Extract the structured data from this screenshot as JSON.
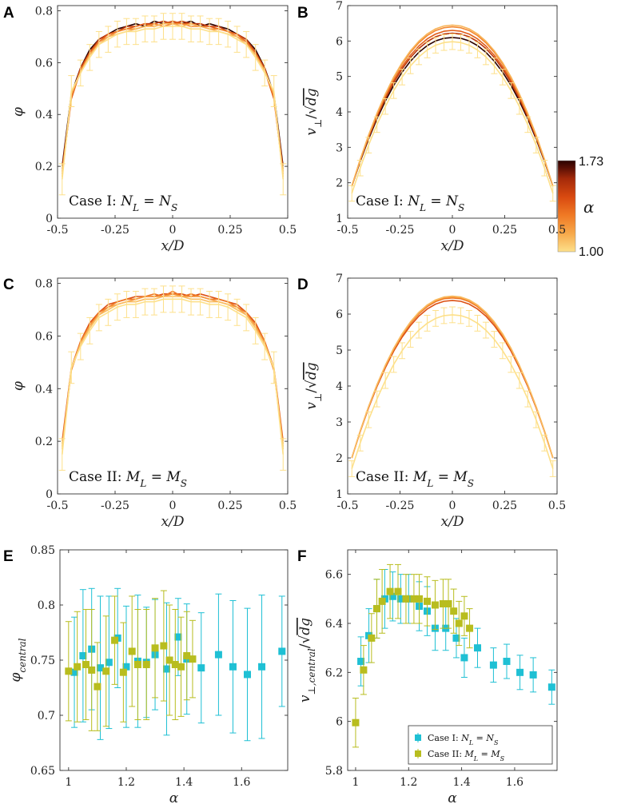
{
  "figure": {
    "panel_labels": [
      "A",
      "B",
      "C",
      "D",
      "E",
      "F"
    ],
    "colorbar": {
      "label": "α",
      "max_label": "1.73",
      "min_label": "1.00",
      "min": 1.0,
      "max": 1.73,
      "colors": [
        "#fde08a",
        "#f7a94b",
        "#f07a25",
        "#d94a10",
        "#a52a0a",
        "#5a0f05",
        "#2b0200"
      ]
    }
  },
  "chart_data": [
    {
      "id": "A",
      "type": "line",
      "title": "",
      "xlabel": "x/D",
      "ylabel": "φ",
      "case_text": "Case I: N_L = N_S",
      "xlim": [
        -0.5,
        0.5
      ],
      "ylim": [
        0,
        0.82
      ],
      "xticks": [
        -0.5,
        -0.25,
        0,
        0.25,
        0.5
      ],
      "xticklabels": [
        "-0.5",
        "-0.25",
        "0",
        "0.25",
        "0.5"
      ],
      "yticks": [
        0,
        0.2,
        0.4,
        0.6,
        0.8
      ],
      "yticklabels": [
        "0",
        "0.2",
        "0.4",
        "0.6",
        "0.8"
      ],
      "x": [
        -0.48,
        -0.44,
        -0.4,
        -0.36,
        -0.32,
        -0.28,
        -0.24,
        -0.2,
        -0.16,
        -0.12,
        -0.08,
        -0.04,
        0,
        0.04,
        0.08,
        0.12,
        0.16,
        0.2,
        0.24,
        0.28,
        0.32,
        0.36,
        0.4,
        0.44,
        0.48
      ],
      "series": [
        {
          "alpha": 1.0,
          "values": [
            0.15,
            0.49,
            0.56,
            0.62,
            0.67,
            0.69,
            0.71,
            0.72,
            0.72,
            0.73,
            0.73,
            0.74,
            0.74,
            0.74,
            0.73,
            0.73,
            0.72,
            0.72,
            0.71,
            0.69,
            0.67,
            0.62,
            0.56,
            0.49,
            0.15
          ],
          "errors": [
            0.06,
            0.06,
            0.05,
            0.05,
            0.05,
            0.05,
            0.05,
            0.05,
            0.05,
            0.05,
            0.05,
            0.05,
            0.05,
            0.05,
            0.05,
            0.05,
            0.05,
            0.05,
            0.05,
            0.05,
            0.05,
            0.05,
            0.05,
            0.06,
            0.06
          ]
        },
        {
          "alpha": 1.12,
          "values": [
            0.16,
            0.48,
            0.56,
            0.63,
            0.67,
            0.7,
            0.71,
            0.72,
            0.73,
            0.74,
            0.74,
            0.75,
            0.75,
            0.74,
            0.75,
            0.74,
            0.73,
            0.72,
            0.71,
            0.7,
            0.67,
            0.63,
            0.57,
            0.48,
            0.16
          ]
        },
        {
          "alpha": 1.25,
          "values": [
            0.17,
            0.47,
            0.57,
            0.63,
            0.68,
            0.7,
            0.72,
            0.73,
            0.73,
            0.74,
            0.75,
            0.74,
            0.75,
            0.75,
            0.74,
            0.74,
            0.73,
            0.73,
            0.72,
            0.7,
            0.68,
            0.63,
            0.57,
            0.47,
            0.17
          ]
        },
        {
          "alpha": 1.38,
          "values": [
            0.18,
            0.46,
            0.57,
            0.64,
            0.68,
            0.71,
            0.72,
            0.73,
            0.74,
            0.75,
            0.74,
            0.75,
            0.76,
            0.75,
            0.75,
            0.74,
            0.74,
            0.73,
            0.72,
            0.71,
            0.68,
            0.64,
            0.57,
            0.46,
            0.18
          ]
        },
        {
          "alpha": 1.52,
          "values": [
            0.19,
            0.47,
            0.58,
            0.64,
            0.69,
            0.71,
            0.72,
            0.74,
            0.74,
            0.75,
            0.75,
            0.76,
            0.75,
            0.76,
            0.75,
            0.75,
            0.74,
            0.74,
            0.72,
            0.71,
            0.69,
            0.64,
            0.58,
            0.47,
            0.19
          ]
        },
        {
          "alpha": 1.73,
          "values": [
            0.2,
            0.48,
            0.58,
            0.65,
            0.69,
            0.71,
            0.73,
            0.74,
            0.75,
            0.74,
            0.76,
            0.75,
            0.76,
            0.75,
            0.76,
            0.74,
            0.75,
            0.74,
            0.73,
            0.71,
            0.69,
            0.65,
            0.58,
            0.48,
            0.2
          ]
        }
      ]
    },
    {
      "id": "B",
      "type": "line",
      "title": "",
      "xlabel": "x/D",
      "ylabel": "v⊥/√dg",
      "case_text": "Case I: N_L = N_S",
      "xlim": [
        -0.5,
        0.5
      ],
      "ylim": [
        1,
        7
      ],
      "xticks": [
        -0.5,
        -0.25,
        0,
        0.25,
        0.5
      ],
      "xticklabels": [
        "-0.5",
        "-0.25",
        "0",
        "0.25",
        "0.5"
      ],
      "yticks": [
        1,
        2,
        3,
        4,
        5,
        6,
        7
      ],
      "yticklabels": [
        "1",
        "2",
        "3",
        "4",
        "5",
        "6",
        "7"
      ],
      "x": [
        -0.48,
        -0.44,
        -0.4,
        -0.36,
        -0.32,
        -0.28,
        -0.24,
        -0.2,
        -0.16,
        -0.12,
        -0.08,
        -0.04,
        0,
        0.04,
        0.08,
        0.12,
        0.16,
        0.2,
        0.24,
        0.28,
        0.32,
        0.36,
        0.4,
        0.44,
        0.48
      ],
      "series": [
        {
          "alpha": 1.0,
          "peak": 5.98,
          "edge": 1.7,
          "err": 0.22
        },
        {
          "alpha": 1.12,
          "peak": 6.45,
          "edge": 1.9
        },
        {
          "alpha": 1.25,
          "peak": 6.4,
          "edge": 1.9
        },
        {
          "alpha": 1.38,
          "peak": 6.3,
          "edge": 1.9
        },
        {
          "alpha": 1.52,
          "peak": 6.22,
          "edge": 1.9
        },
        {
          "alpha": 1.73,
          "peak": 6.1,
          "edge": 1.9
        }
      ]
    },
    {
      "id": "C",
      "type": "line",
      "title": "",
      "xlabel": "x/D",
      "ylabel": "φ",
      "case_text": "Case II: M_L = M_S",
      "xlim": [
        -0.5,
        0.5
      ],
      "ylim": [
        0,
        0.82
      ],
      "xticks": [
        -0.5,
        -0.25,
        0,
        0.25,
        0.5
      ],
      "xticklabels": [
        "-0.5",
        "-0.25",
        "0",
        "0.25",
        "0.5"
      ],
      "yticks": [
        0,
        0.2,
        0.4,
        0.6,
        0.8
      ],
      "yticklabels": [
        "0",
        "0.2",
        "0.4",
        "0.6",
        "0.8"
      ],
      "x": [
        -0.48,
        -0.44,
        -0.4,
        -0.36,
        -0.32,
        -0.28,
        -0.24,
        -0.2,
        -0.16,
        -0.12,
        -0.08,
        -0.04,
        0,
        0.04,
        0.08,
        0.12,
        0.16,
        0.2,
        0.24,
        0.28,
        0.32,
        0.36,
        0.4,
        0.44,
        0.48
      ],
      "series": [
        {
          "alpha": 1.0,
          "values": [
            0.15,
            0.48,
            0.56,
            0.62,
            0.67,
            0.69,
            0.71,
            0.72,
            0.72,
            0.73,
            0.73,
            0.74,
            0.74,
            0.74,
            0.73,
            0.73,
            0.72,
            0.72,
            0.71,
            0.69,
            0.67,
            0.62,
            0.56,
            0.48,
            0.15
          ],
          "errors": [
            0.06,
            0.06,
            0.05,
            0.05,
            0.05,
            0.05,
            0.05,
            0.05,
            0.05,
            0.05,
            0.05,
            0.05,
            0.05,
            0.05,
            0.05,
            0.05,
            0.05,
            0.05,
            0.05,
            0.05,
            0.05,
            0.05,
            0.05,
            0.06,
            0.06
          ]
        },
        {
          "alpha": 1.1,
          "values": [
            0.17,
            0.48,
            0.57,
            0.63,
            0.68,
            0.7,
            0.72,
            0.73,
            0.73,
            0.74,
            0.74,
            0.75,
            0.75,
            0.75,
            0.74,
            0.74,
            0.73,
            0.73,
            0.72,
            0.7,
            0.68,
            0.63,
            0.57,
            0.48,
            0.17
          ]
        },
        {
          "alpha": 1.2,
          "values": [
            0.18,
            0.47,
            0.57,
            0.64,
            0.68,
            0.71,
            0.72,
            0.73,
            0.74,
            0.75,
            0.75,
            0.75,
            0.76,
            0.75,
            0.75,
            0.75,
            0.74,
            0.73,
            0.72,
            0.71,
            0.68,
            0.64,
            0.57,
            0.47,
            0.18
          ]
        },
        {
          "alpha": 1.3,
          "values": [
            0.19,
            0.47,
            0.58,
            0.64,
            0.69,
            0.71,
            0.73,
            0.74,
            0.74,
            0.75,
            0.76,
            0.75,
            0.77,
            0.75,
            0.76,
            0.75,
            0.74,
            0.74,
            0.73,
            0.71,
            0.69,
            0.64,
            0.58,
            0.47,
            0.19
          ]
        },
        {
          "alpha": 1.42,
          "values": [
            0.2,
            0.48,
            0.58,
            0.65,
            0.69,
            0.72,
            0.73,
            0.74,
            0.75,
            0.75,
            0.75,
            0.76,
            0.76,
            0.76,
            0.75,
            0.76,
            0.75,
            0.74,
            0.73,
            0.72,
            0.69,
            0.65,
            0.58,
            0.48,
            0.2
          ]
        }
      ]
    },
    {
      "id": "D",
      "type": "line",
      "title": "",
      "xlabel": "x/D",
      "ylabel": "v⊥/√dg",
      "case_text": "Case II: M_L = M_S",
      "xlim": [
        -0.5,
        0.5
      ],
      "ylim": [
        1,
        7
      ],
      "xticks": [
        -0.5,
        -0.25,
        0,
        0.25,
        0.5
      ],
      "xticklabels": [
        "-0.5",
        "-0.25",
        "0",
        "0.25",
        "0.5"
      ],
      "yticks": [
        1,
        2,
        3,
        4,
        5,
        6,
        7
      ],
      "yticklabels": [
        "1",
        "2",
        "3",
        "4",
        "5",
        "6",
        "7"
      ],
      "x": [
        -0.48,
        -0.44,
        -0.4,
        -0.36,
        -0.32,
        -0.28,
        -0.24,
        -0.2,
        -0.16,
        -0.12,
        -0.08,
        -0.04,
        0,
        0.04,
        0.08,
        0.12,
        0.16,
        0.2,
        0.24,
        0.28,
        0.32,
        0.36,
        0.4,
        0.44,
        0.48
      ],
      "series": [
        {
          "alpha": 1.0,
          "peak": 5.98,
          "edge": 1.7,
          "err": 0.22
        },
        {
          "alpha": 1.1,
          "peak": 6.5,
          "edge": 2.0
        },
        {
          "alpha": 1.2,
          "peak": 6.48,
          "edge": 2.0
        },
        {
          "alpha": 1.3,
          "peak": 6.45,
          "edge": 2.0
        },
        {
          "alpha": 1.42,
          "peak": 6.38,
          "edge": 2.0
        }
      ]
    },
    {
      "id": "E",
      "type": "scatter",
      "title": "",
      "xlabel": "α",
      "ylabel": "φ_central",
      "xlim": [
        0.97,
        1.76
      ],
      "ylim": [
        0.65,
        0.85
      ],
      "xticks": [
        1,
        1.2,
        1.4,
        1.6
      ],
      "xticklabels": [
        "1",
        "1.2",
        "1.4",
        "1.6"
      ],
      "yticks": [
        0.65,
        0.7,
        0.75,
        0.8,
        0.85
      ],
      "yticklabels": [
        "0.65",
        "0.7",
        "0.75",
        "0.8",
        "0.85"
      ],
      "series": [
        {
          "name": "Case I",
          "color": "#1fc0d4",
          "x": [
            1.02,
            1.05,
            1.08,
            1.11,
            1.14,
            1.17,
            1.2,
            1.24,
            1.27,
            1.3,
            1.34,
            1.38,
            1.41,
            1.46,
            1.52,
            1.57,
            1.62,
            1.67,
            1.74
          ],
          "y": [
            0.739,
            0.754,
            0.76,
            0.743,
            0.748,
            0.77,
            0.744,
            0.749,
            0.748,
            0.755,
            0.742,
            0.771,
            0.751,
            0.743,
            0.755,
            0.744,
            0.737,
            0.744,
            0.758
          ],
          "err": [
            0.05,
            0.06,
            0.055,
            0.065,
            0.06,
            0.045,
            0.055,
            0.06,
            0.05,
            0.05,
            0.06,
            0.035,
            0.05,
            0.05,
            0.055,
            0.06,
            0.06,
            0.065,
            0.05
          ]
        },
        {
          "name": "Case II",
          "color": "#b8bd1e",
          "x": [
            1.0,
            1.03,
            1.06,
            1.08,
            1.1,
            1.13,
            1.16,
            1.19,
            1.22,
            1.24,
            1.27,
            1.3,
            1.33,
            1.35,
            1.37,
            1.39,
            1.41,
            1.43
          ],
          "y": [
            0.74,
            0.744,
            0.746,
            0.741,
            0.726,
            0.74,
            0.768,
            0.739,
            0.758,
            0.746,
            0.746,
            0.761,
            0.763,
            0.75,
            0.746,
            0.744,
            0.754,
            0.751
          ],
          "err": [
            0.045,
            0.05,
            0.05,
            0.055,
            0.04,
            0.05,
            0.04,
            0.045,
            0.05,
            0.05,
            0.05,
            0.045,
            0.05,
            0.05,
            0.05,
            0.045,
            0.04,
            0.035
          ]
        }
      ]
    },
    {
      "id": "F",
      "type": "scatter",
      "title": "",
      "xlabel": "α",
      "ylabel": "v⊥,central/√dg",
      "xlim": [
        0.97,
        1.76
      ],
      "ylim": [
        5.8,
        6.7
      ],
      "xticks": [
        1,
        1.2,
        1.4,
        1.6
      ],
      "xticklabels": [
        "1",
        "1.2",
        "1.4",
        "1.6"
      ],
      "yticks": [
        5.8,
        6,
        6.2,
        6.4,
        6.6
      ],
      "yticklabels": [
        "5.8",
        "6",
        "6.2",
        "6.4",
        "6.6"
      ],
      "legend": {
        "position": "bottom-right",
        "entries": [
          "Case I: N_L = N_S",
          "Case II: M_L = M_S"
        ]
      },
      "series": [
        {
          "name": "Case I: N_L = N_S",
          "color": "#1fc0d4",
          "x": [
            1.02,
            1.05,
            1.08,
            1.11,
            1.14,
            1.17,
            1.2,
            1.24,
            1.27,
            1.3,
            1.34,
            1.38,
            1.41,
            1.46,
            1.52,
            1.57,
            1.62,
            1.67,
            1.74
          ],
          "y": [
            6.245,
            6.35,
            6.46,
            6.5,
            6.51,
            6.5,
            6.5,
            6.47,
            6.45,
            6.38,
            6.38,
            6.34,
            6.26,
            6.3,
            6.23,
            6.245,
            6.2,
            6.19,
            6.14
          ],
          "err": [
            0.1,
            0.11,
            0.12,
            0.12,
            0.1,
            0.1,
            0.1,
            0.1,
            0.1,
            0.09,
            0.09,
            0.08,
            0.08,
            0.08,
            0.07,
            0.07,
            0.07,
            0.07,
            0.07
          ]
        },
        {
          "name": "Case II: M_L = M_S",
          "color": "#b8bd1e",
          "x": [
            1.0,
            1.03,
            1.06,
            1.08,
            1.1,
            1.13,
            1.16,
            1.19,
            1.22,
            1.24,
            1.27,
            1.3,
            1.33,
            1.35,
            1.37,
            1.39,
            1.41,
            1.43
          ],
          "y": [
            5.995,
            6.21,
            6.34,
            6.46,
            6.49,
            6.53,
            6.53,
            6.5,
            6.5,
            6.5,
            6.49,
            6.475,
            6.48,
            6.48,
            6.45,
            6.4,
            6.43,
            6.38
          ],
          "err": [
            0.1,
            0.1,
            0.1,
            0.12,
            0.13,
            0.11,
            0.11,
            0.1,
            0.1,
            0.1,
            0.1,
            0.1,
            0.1,
            0.1,
            0.09,
            0.09,
            0.08,
            0.08
          ]
        }
      ]
    }
  ]
}
